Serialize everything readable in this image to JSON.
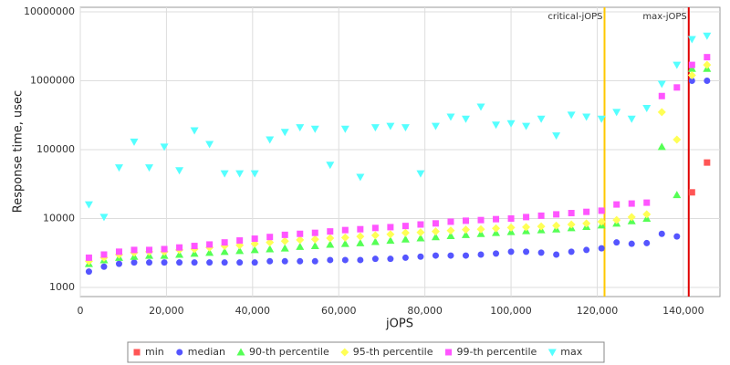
{
  "chart_data": {
    "type": "scatter",
    "x_label": "jOPS",
    "y_label": "Response time, usec",
    "log_scale_y": true,
    "grid": true,
    "xlim": [
      0,
      148500
    ],
    "ylim": [
      737,
      11650000
    ],
    "xticks": [
      0,
      {
        "value": 20000,
        "label": "20,000"
      },
      {
        "value": 40000,
        "label": "40,000"
      },
      {
        "value": 60000,
        "label": "60,000"
      },
      {
        "value": 80000,
        "label": "80,000"
      },
      {
        "value": 100000,
        "label": "100,000"
      },
      {
        "value": 120000,
        "label": "120,000"
      },
      {
        "value": 140000,
        "label": "140,000"
      }
    ],
    "yticks": [
      1000,
      10000,
      100000,
      1000000,
      10000000
    ],
    "annotations": [
      {
        "label": "critical-jOPS",
        "x": 121700,
        "color": "#ffc800"
      },
      {
        "label": "max-jOPS",
        "x": 141250,
        "color": "#e00000"
      }
    ],
    "legend": "bottom",
    "x": [
      2000,
      5500,
      9000,
      12500,
      16000,
      19500,
      23000,
      26500,
      30000,
      33500,
      37000,
      40500,
      44000,
      47500,
      51000,
      54500,
      58000,
      61500,
      65000,
      68500,
      72000,
      75500,
      79000,
      82500,
      86000,
      89500,
      93000,
      96500,
      100000,
      103500,
      107000,
      110500,
      114000,
      117500,
      121000,
      124500,
      128000,
      131500,
      135000,
      138500,
      142000,
      145500
    ],
    "series": [
      {
        "name": "min",
        "color": "#ff5555",
        "marker": "square",
        "values": [
          null,
          null,
          null,
          null,
          null,
          null,
          null,
          null,
          null,
          null,
          null,
          null,
          null,
          null,
          null,
          null,
          null,
          null,
          null,
          null,
          null,
          null,
          null,
          null,
          null,
          null,
          null,
          null,
          null,
          null,
          null,
          null,
          null,
          null,
          null,
          null,
          null,
          null,
          null,
          null,
          24000,
          65000
        ]
      },
      {
        "name": "median",
        "color": "#5555ff",
        "marker": "circle",
        "values": [
          1700,
          2000,
          2200,
          2300,
          2300,
          2300,
          2300,
          2300,
          2300,
          2300,
          2300,
          2300,
          2400,
          2400,
          2400,
          2400,
          2500,
          2500,
          2500,
          2600,
          2600,
          2700,
          2800,
          2900,
          2900,
          2900,
          3000,
          3100,
          3300,
          3300,
          3200,
          3000,
          3300,
          3500,
          3700,
          4500,
          4300,
          4400,
          6000,
          5500,
          1000000,
          1000000
        ]
      },
      {
        "name": "90-th percentile",
        "color": "#55ff55",
        "marker": "triangle",
        "values": [
          2200,
          2500,
          2700,
          2800,
          2900,
          2900,
          3000,
          3100,
          3200,
          3300,
          3400,
          3500,
          3600,
          3700,
          3900,
          4000,
          4200,
          4300,
          4400,
          4600,
          4800,
          5000,
          5200,
          5400,
          5600,
          5800,
          6000,
          6200,
          6400,
          6600,
          6800,
          7000,
          7300,
          7600,
          8000,
          8500,
          9200,
          10000,
          110000,
          22000,
          1500000,
          1500000
        ]
      },
      {
        "name": "95-th percentile",
        "color": "#ffff55",
        "marker": "diamond",
        "values": [
          2400,
          2700,
          3000,
          3200,
          3300,
          3300,
          3500,
          3600,
          3800,
          4000,
          4100,
          4300,
          4500,
          4700,
          4900,
          5000,
          5200,
          5300,
          5500,
          5700,
          5900,
          6200,
          6300,
          6500,
          6700,
          6900,
          7000,
          7200,
          7400,
          7500,
          7700,
          7900,
          8200,
          8500,
          9000,
          9500,
          10500,
          11500,
          350000,
          140000,
          1200000,
          1700000
        ]
      },
      {
        "name": "99-th percentile",
        "color": "#ff55ff",
        "marker": "square",
        "values": [
          2700,
          3000,
          3300,
          3500,
          3500,
          3600,
          3800,
          4000,
          4200,
          4500,
          4800,
          5100,
          5400,
          5800,
          6000,
          6200,
          6500,
          6800,
          7000,
          7300,
          7500,
          7800,
          8200,
          8500,
          9000,
          9300,
          9500,
          9800,
          10000,
          10500,
          11000,
          11500,
          12000,
          12500,
          13000,
          16000,
          16500,
          17000,
          600000,
          800000,
          1700000,
          2200000
        ]
      },
      {
        "name": "max",
        "color": "#55ffff",
        "marker": "triangle-down",
        "values": [
          16000,
          10500,
          55000,
          130000,
          55000,
          110000,
          50000,
          190000,
          120000,
          45000,
          45000,
          45000,
          140000,
          180000,
          210000,
          200000,
          60000,
          200000,
          40000,
          210000,
          220000,
          210000,
          45000,
          220000,
          300000,
          280000,
          420000,
          230000,
          240000,
          220000,
          280000,
          160000,
          320000,
          300000,
          280000,
          350000,
          280000,
          400000,
          900000,
          1700000,
          4000000,
          4500000
        ]
      }
    ]
  }
}
